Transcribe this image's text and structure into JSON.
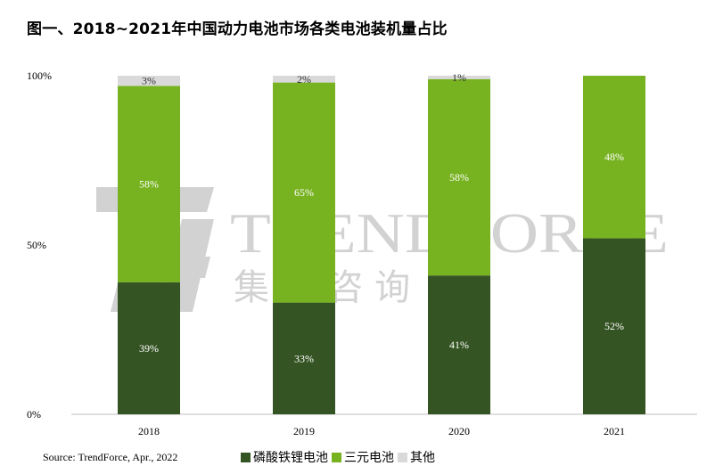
{
  "title": "图一、2018~2021年中国动力电池市场各类电池装机量占比",
  "source": "Source: TrendForce, Apr., 2022",
  "watermark": {
    "brand": "TRENDFORCE",
    "subtitle": "集 邦 咨 询"
  },
  "colors": {
    "lfp": "#355424",
    "ncm": "#77b220",
    "other": "#d9d9d9",
    "axis": "#bfbfbf"
  },
  "chart_data": {
    "type": "bar",
    "stacked": true,
    "categories": [
      "2018",
      "2019",
      "2020",
      "2021"
    ],
    "series": [
      {
        "name": "磷酸铁锂电池",
        "values": [
          39,
          33,
          41,
          52
        ],
        "labels": [
          "39%",
          "33%",
          "41%",
          "52%"
        ],
        "color": "#355424"
      },
      {
        "name": "三元电池",
        "values": [
          58,
          65,
          58,
          48
        ],
        "labels": [
          "58%",
          "65%",
          "58%",
          "48%"
        ],
        "color": "#77b220"
      },
      {
        "name": "其他",
        "values": [
          3,
          2,
          1,
          0
        ],
        "labels": [
          "3%",
          "2%",
          "1%",
          ""
        ],
        "color": "#d9d9d9"
      }
    ],
    "yticks": [
      "0%",
      "50%",
      "100%"
    ],
    "ylim": [
      0,
      100
    ],
    "legend_position": "bottom"
  }
}
